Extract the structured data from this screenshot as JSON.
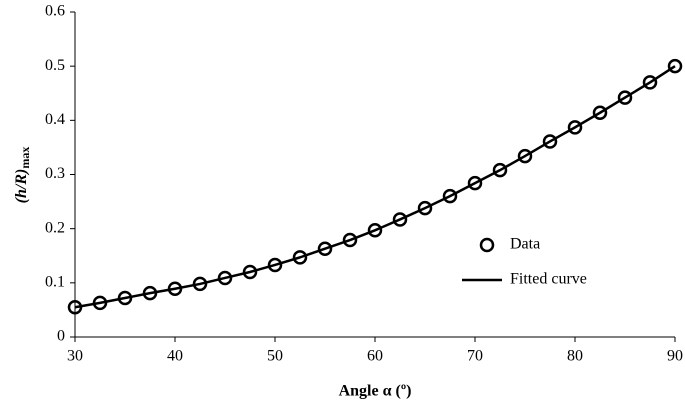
{
  "chart_data": {
    "type": "line",
    "x_label": "Angle α (º)",
    "y_label": "(h/R)",
    "y_label_sub": "max",
    "x": [
      30,
      32.5,
      35,
      37.5,
      40,
      42.5,
      45,
      47.5,
      50,
      52.5,
      55,
      57.5,
      60,
      62.5,
      65,
      67.5,
      70,
      72.5,
      75,
      77.5,
      80,
      82.5,
      85,
      87.5,
      90
    ],
    "series": [
      {
        "name": "Data",
        "color": "#000000",
        "marker": "circle",
        "values": [
          0.055,
          0.063,
          0.072,
          0.081,
          0.089,
          0.098,
          0.109,
          0.12,
          0.133,
          0.147,
          0.163,
          0.179,
          0.197,
          0.217,
          0.238,
          0.26,
          0.284,
          0.308,
          0.334,
          0.361,
          0.387,
          0.414,
          0.442,
          0.47,
          0.5
        ]
      },
      {
        "name": "Fitted curve",
        "color": "#000000",
        "marker": "none",
        "values": [
          0.055,
          0.063,
          0.072,
          0.081,
          0.089,
          0.098,
          0.109,
          0.12,
          0.133,
          0.147,
          0.163,
          0.179,
          0.197,
          0.217,
          0.238,
          0.26,
          0.284,
          0.308,
          0.334,
          0.361,
          0.387,
          0.414,
          0.442,
          0.47,
          0.5
        ]
      }
    ],
    "xlim": [
      30,
      90
    ],
    "xticks": [
      30,
      40,
      50,
      60,
      70,
      80,
      90
    ],
    "ylim": [
      0,
      0.6
    ],
    "yticks": [
      0,
      0.1,
      0.2,
      0.3,
      0.4,
      0.5,
      0.6
    ],
    "grid": false,
    "legend": "right"
  }
}
